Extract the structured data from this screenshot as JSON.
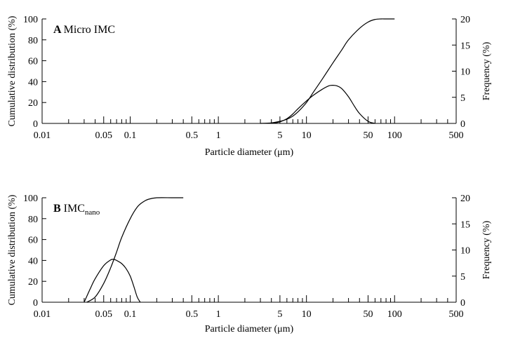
{
  "chart_data": [
    {
      "type": "line",
      "panel": "A",
      "title": "Micro IMC",
      "title_sub": "",
      "xlabel": "Particle diameter (μm)",
      "ylabel": "Cumulative distribution (%)",
      "ylabel_right": "Frequency (%)",
      "x_scale": "log",
      "xlim": [
        0.01,
        500
      ],
      "ylim": [
        0,
        100
      ],
      "ylim_right": [
        0,
        20
      ],
      "x_ticks": [
        "0.01",
        "0.05",
        "0.1",
        "0.5",
        "1",
        "5",
        "10",
        "50",
        "100",
        "500"
      ],
      "y_ticks": [
        "0",
        "20",
        "40",
        "60",
        "80",
        "100"
      ],
      "y_ticks_right": [
        "0",
        "5",
        "10",
        "15",
        "20"
      ],
      "series": [
        {
          "axis": "left",
          "x": [
            3,
            4,
            5,
            6,
            7,
            8,
            10,
            12,
            15,
            20,
            25,
            30,
            40,
            50,
            60,
            70,
            80,
            100
          ],
          "y": [
            0,
            0.5,
            2,
            4,
            7,
            11,
            20,
            30,
            42,
            58,
            70,
            80,
            91,
            97,
            99.5,
            100,
            100,
            100
          ]
        },
        {
          "axis": "right",
          "x": [
            4,
            5,
            6,
            7,
            8,
            10,
            12,
            15,
            18,
            20,
            22,
            25,
            30,
            35,
            40,
            50,
            60
          ],
          "y": [
            0,
            0.3,
            0.9,
            1.8,
            2.8,
            4.3,
            5.4,
            6.5,
            7.2,
            7.3,
            7.2,
            6.7,
            5.1,
            3.3,
            1.9,
            0.4,
            0
          ]
        }
      ]
    },
    {
      "type": "line",
      "panel": "B",
      "title": "IMC",
      "title_sub": "nano",
      "xlabel": "Particle diameter (μm)",
      "ylabel": "Cumulative distribution (%)",
      "ylabel_right": "Frequency (%)",
      "x_scale": "log",
      "xlim": [
        0.01,
        500
      ],
      "ylim": [
        0,
        100
      ],
      "ylim_right": [
        0,
        20
      ],
      "x_ticks": [
        "0.01",
        "0.05",
        "0.1",
        "0.5",
        "1",
        "5",
        "10",
        "50",
        "100",
        "500"
      ],
      "y_ticks": [
        "0",
        "20",
        "40",
        "60",
        "80",
        "100"
      ],
      "y_ticks_right": [
        "0",
        "5",
        "10",
        "15",
        "20"
      ],
      "series": [
        {
          "axis": "left",
          "x": [
            0.032,
            0.04,
            0.05,
            0.06,
            0.07,
            0.08,
            0.1,
            0.12,
            0.14,
            0.16,
            0.2,
            0.3,
            0.4
          ],
          "y": [
            0,
            5,
            18,
            33,
            48,
            62,
            80,
            91,
            96,
            98.5,
            100,
            100,
            100
          ]
        },
        {
          "axis": "right",
          "x": [
            0.03,
            0.035,
            0.04,
            0.05,
            0.06,
            0.065,
            0.07,
            0.08,
            0.09,
            0.1,
            0.11,
            0.12,
            0.13
          ],
          "y": [
            0,
            2.5,
            4.5,
            7,
            8.1,
            8.2,
            8,
            7.4,
            6.4,
            5,
            3,
            1,
            0
          ]
        }
      ]
    }
  ]
}
